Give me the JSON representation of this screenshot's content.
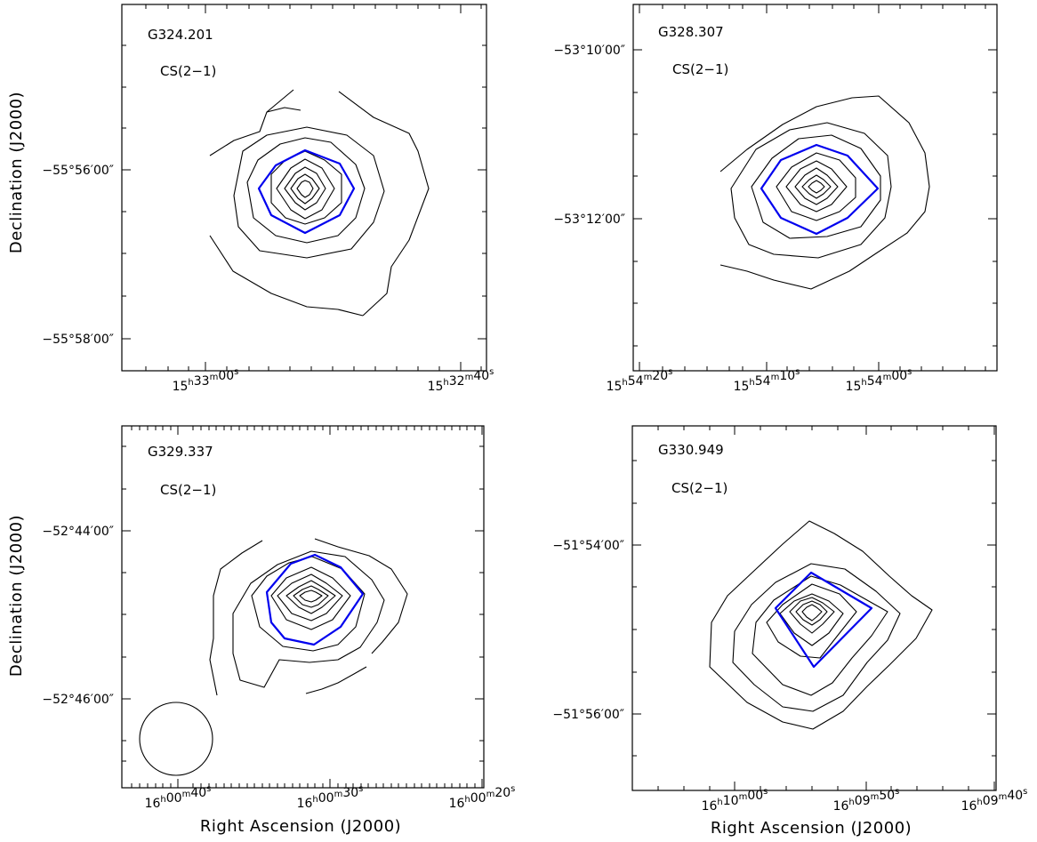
{
  "chart_data": [
    {
      "type": "contour",
      "title": "G324.201",
      "subtitle": "CS(2−1)",
      "xlabel": "",
      "ylabel": "Declination (J2000)",
      "x_tick_labels": [
        {
          "h": "15",
          "m": "33",
          "s": "00"
        },
        {
          "h": "15",
          "m": "32",
          "s": "40"
        }
      ],
      "y_tick_labels": [
        "−55°56′00″",
        "−55°58′00″"
      ],
      "highlight_color": "#0000ee",
      "contour_color": "#000000"
    },
    {
      "type": "contour",
      "title": "G328.307",
      "subtitle": "CS(2−1)",
      "xlabel": "",
      "ylabel": "",
      "x_tick_labels": [
        {
          "h": "15",
          "m": "54",
          "s": "20"
        },
        {
          "h": "15",
          "m": "54",
          "s": "10"
        },
        {
          "h": "15",
          "m": "54",
          "s": "00"
        }
      ],
      "y_tick_labels": [
        "−53°10′00″",
        "−53°12′00″"
      ],
      "highlight_color": "#0000ee",
      "contour_color": "#000000"
    },
    {
      "type": "contour",
      "title": "G329.337",
      "subtitle": "CS(2−1)",
      "xlabel": "Right Ascension (J2000)",
      "ylabel": "Declination (J2000)",
      "x_tick_labels": [
        {
          "h": "16",
          "m": "00",
          "s": "40"
        },
        {
          "h": "16",
          "m": "00",
          "s": "30"
        },
        {
          "h": "16",
          "m": "00",
          "s": "20"
        }
      ],
      "y_tick_labels": [
        "−52°44′00″",
        "−52°46′00″"
      ],
      "beam": true,
      "highlight_color": "#0000ee",
      "contour_color": "#000000"
    },
    {
      "type": "contour",
      "title": "G330.949",
      "subtitle": "CS(2−1)",
      "xlabel": "Right Ascension (J2000)",
      "ylabel": "",
      "x_tick_labels": [
        {
          "h": "16",
          "m": "10",
          "s": "00"
        },
        {
          "h": "16",
          "m": "09",
          "s": "50"
        },
        {
          "h": "16",
          "m": "09",
          "s": "40"
        }
      ],
      "y_tick_labels": [
        "−51°54′00″",
        "−51°56′00″"
      ],
      "highlight_color": "#0000ee",
      "contour_color": "#000000"
    }
  ]
}
